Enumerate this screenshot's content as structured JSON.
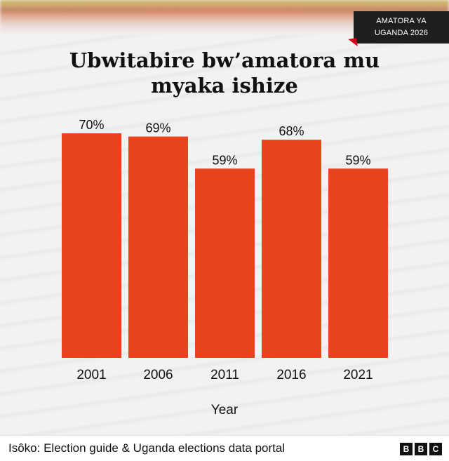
{
  "badge": {
    "line1": "AMATORA YA",
    "line2": "UGANDA 2026"
  },
  "chart_data": {
    "type": "bar",
    "title": "Ubwitabire bw’amatora mu myaka ishize",
    "xlabel": "Year",
    "ylabel": "",
    "categories": [
      "2001",
      "2006",
      "2011",
      "2016",
      "2021"
    ],
    "values": [
      70,
      69,
      59,
      68,
      59
    ],
    "value_labels": [
      "70%",
      "69%",
      "59%",
      "68%",
      "59%"
    ],
    "ylim": [
      0,
      70
    ],
    "grid": false,
    "bar_color": "#e8431e"
  },
  "footer": {
    "source": "Isôko: Election guide & Uganda elections data portal",
    "logo": [
      "B",
      "B",
      "C"
    ]
  }
}
